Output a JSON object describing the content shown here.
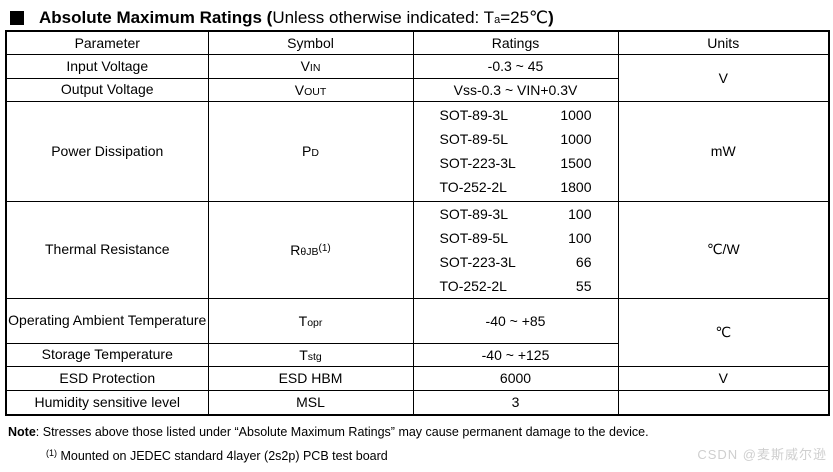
{
  "title": {
    "bold_open": "Absolute Maximum Ratings (",
    "condition_pre": "Unless otherwise indicated: T",
    "condition_sub": "a",
    "condition_post": "=25℃",
    "close_paren": ")"
  },
  "table": {
    "headers": [
      "Parameter",
      "Symbol",
      "Ratings",
      "Units"
    ],
    "rows": [
      {
        "param": "Input Voltage",
        "symbol": {
          "base": "V",
          "sub": "IN"
        },
        "rating": "-0.3 ~ 45",
        "units": "V"
      },
      {
        "param": "Output Voltage",
        "symbol": {
          "base": "V",
          "sub": "OUT"
        },
        "rating": "Vss-0.3 ~ VIN+0.3V"
      },
      {
        "param": "Power Dissipation",
        "symbol": {
          "base": "P",
          "sub": "D"
        },
        "ratings_list": [
          {
            "pkg": "SOT-89-3L",
            "val": "1000"
          },
          {
            "pkg": "SOT-89-5L",
            "val": "1000"
          },
          {
            "pkg": "SOT-223-3L",
            "val": "1500"
          },
          {
            "pkg": "TO-252-2L",
            "val": "1800"
          }
        ],
        "units": "mW"
      },
      {
        "param": "Thermal Resistance",
        "symbol": {
          "base": "R",
          "sub": "θJB",
          "sup": "(1)"
        },
        "ratings_list": [
          {
            "pkg": "SOT-89-3L",
            "val": "100"
          },
          {
            "pkg": "SOT-89-5L",
            "val": "100"
          },
          {
            "pkg": "SOT-223-3L",
            "val": "66"
          },
          {
            "pkg": "TO-252-2L",
            "val": "55"
          }
        ],
        "units": "℃/W"
      },
      {
        "param": "Operating Ambient Temperature",
        "symbol": {
          "base": "T",
          "sub": "opr"
        },
        "rating": "-40 ~ +85",
        "units": "℃"
      },
      {
        "param": "Storage Temperature",
        "symbol": {
          "base": "T",
          "sub": "stg"
        },
        "rating": "-40 ~ +125"
      },
      {
        "param": "ESD Protection",
        "symbol": {
          "base": "ESD HBM",
          "sub": ""
        },
        "rating": "6000",
        "units": "V"
      },
      {
        "param": "Humidity sensitive level",
        "symbol": {
          "base": "MSL",
          "sub": ""
        },
        "rating": "3",
        "units": ""
      }
    ]
  },
  "note": {
    "label": "Note",
    "body": ": Stresses above those listed under “Absolute Maximum Ratings” may cause permanent damage to the device."
  },
  "footnote": {
    "marker": "(1)",
    "body": " Mounted on JEDEC standard 4layer (2s2p) PCB test board"
  },
  "watermark": {
    "text": "CSDN @麦斯威尔逊"
  }
}
